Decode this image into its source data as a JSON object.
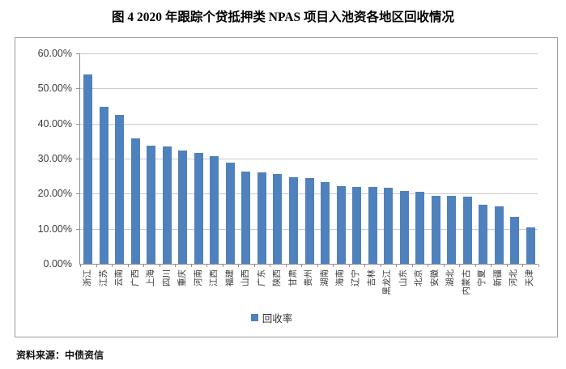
{
  "figure": {
    "title": "图 4 2020 年跟踪个贷抵押类 NPAS 项目入池资各地区回收情况",
    "source": "资料来源：中债资信"
  },
  "chart_data": {
    "type": "bar",
    "title": "图 4 2020 年跟踪个贷抵押类 NPAS 项目入池资各地区回收情况",
    "categories": [
      "浙江",
      "江苏",
      "云南",
      "广西",
      "上海",
      "四川",
      "重庆",
      "河南",
      "江西",
      "福建",
      "山西",
      "广东",
      "陕西",
      "甘肃",
      "贵州",
      "湖南",
      "海南",
      "辽宁",
      "吉林",
      "黑龙江",
      "山东",
      "北京",
      "安徽",
      "湖北",
      "内蒙古",
      "宁夏",
      "新疆",
      "河北",
      "天津"
    ],
    "series": [
      {
        "name": "回收率",
        "values": [
          54.0,
          44.8,
          42.5,
          35.7,
          33.7,
          33.5,
          32.4,
          31.6,
          30.7,
          28.9,
          26.3,
          26.0,
          25.6,
          24.6,
          24.5,
          23.3,
          22.2,
          22.0,
          22.0,
          21.8,
          20.8,
          20.6,
          19.5,
          19.3,
          19.2,
          16.9,
          16.4,
          13.3,
          10.3
        ]
      }
    ],
    "value_unit": "percent",
    "xlabel": "",
    "ylabel": "",
    "ylim": [
      0,
      60
    ],
    "ytick_step": 10,
    "ytick_labels": [
      "0.00%",
      "10.00%",
      "20.00%",
      "30.00%",
      "40.00%",
      "50.00%",
      "60.00%"
    ],
    "grid": true,
    "legend_position": "bottom",
    "bar_color": "#4f81bd"
  }
}
